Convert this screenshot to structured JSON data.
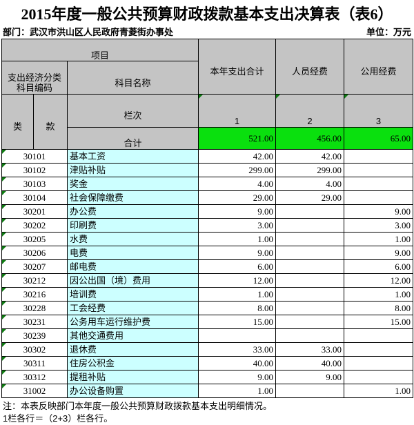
{
  "title": "2015年度一般公共预算财政拨款基本支出决算表（表6）",
  "meta": {
    "department": "部门：武汉市洪山区人民政府青菱街办事处",
    "unit": "单位：万元"
  },
  "table": {
    "header": {
      "project": "项目",
      "code_group": "支出经济分类\n科目编码",
      "subject_name": "科目名称",
      "col_total": "本年支出合计",
      "col_personnel": "人员经费",
      "col_public": "公用经费",
      "class_label": "类",
      "section_label": "款",
      "row_index_label": "栏次",
      "total_label": "合计",
      "col_numbers": [
        "1",
        "2",
        "3"
      ]
    },
    "totals": {
      "total": "521.00",
      "personnel": "456.00",
      "public": "65.00"
    },
    "rows": [
      {
        "code": "30101",
        "name": "基本工资",
        "total": "42.00",
        "personnel": "42.00",
        "public": ""
      },
      {
        "code": "30102",
        "name": "津贴补贴",
        "total": "299.00",
        "personnel": "299.00",
        "public": ""
      },
      {
        "code": "30103",
        "name": "奖金",
        "total": "4.00",
        "personnel": "4.00",
        "public": ""
      },
      {
        "code": "30104",
        "name": "社会保障缴费",
        "total": "29.00",
        "personnel": "29.00",
        "public": ""
      },
      {
        "code": "30201",
        "name": "办公费",
        "total": "9.00",
        "personnel": "",
        "public": "9.00"
      },
      {
        "code": "30202",
        "name": "印刷费",
        "total": "3.00",
        "personnel": "",
        "public": "3.00"
      },
      {
        "code": "30205",
        "name": "水费",
        "total": "1.00",
        "personnel": "",
        "public": "1.00"
      },
      {
        "code": "30206",
        "name": "电费",
        "total": "9.00",
        "personnel": "",
        "public": "9.00"
      },
      {
        "code": "30207",
        "name": "邮电费",
        "total": "6.00",
        "personnel": "",
        "public": "6.00"
      },
      {
        "code": "30212",
        "name": "因公出国（境）费用",
        "total": "12.00",
        "personnel": "",
        "public": "12.00"
      },
      {
        "code": "30216",
        "name": "培训费",
        "total": "1.00",
        "personnel": "",
        "public": "1.00"
      },
      {
        "code": "30228",
        "name": "工会经费",
        "total": "8.00",
        "personnel": "",
        "public": "8.00"
      },
      {
        "code": "30231",
        "name": "公务用车运行维护费",
        "total": "15.00",
        "personnel": "",
        "public": "15.00"
      },
      {
        "code": "30239",
        "name": "其他交通费用",
        "total": "",
        "personnel": "",
        "public": ""
      },
      {
        "code": "30302",
        "name": "退休费",
        "total": "33.00",
        "personnel": "33.00",
        "public": ""
      },
      {
        "code": "30311",
        "name": "住房公积金",
        "total": "40.00",
        "personnel": "40.00",
        "public": ""
      },
      {
        "code": "30312",
        "name": "提租补贴",
        "total": "9.00",
        "personnel": "9.00",
        "public": ""
      },
      {
        "code": "31002",
        "name": "办公设备购置",
        "total": "1.00",
        "personnel": "",
        "public": "1.00"
      }
    ]
  },
  "notes": [
    "注：本表反映部门本年度一般公共预算财政拨款基本支出明细情况。",
    "1栏各行＝（2+3）栏各行。"
  ],
  "colors": {
    "header_bg": "#c4c4c4",
    "total_bg": "#0ae00e",
    "subject_bg": "#ccffff",
    "flag_color": "#0e7b12",
    "border": "#000000"
  }
}
